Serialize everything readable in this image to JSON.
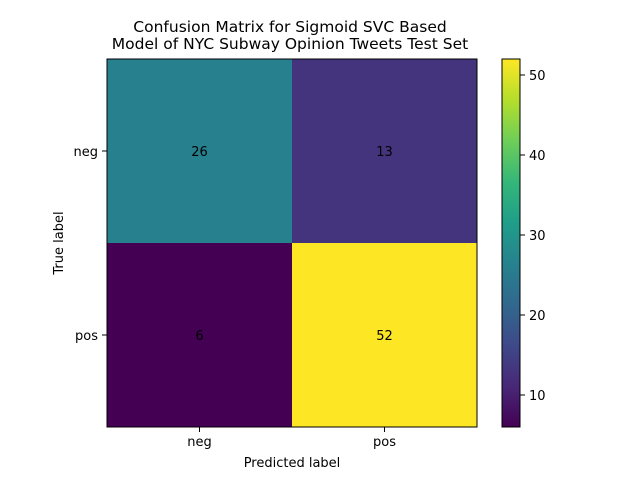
{
  "chart_data": {
    "type": "heatmap",
    "title_lines": [
      "Confusion Matrix for Sigmoid SVC Based",
      "Model of NYC Subway Opinion Tweets Test Set"
    ],
    "xlabel": "Predicted label",
    "ylabel": "True label",
    "x_categories": [
      "neg",
      "pos"
    ],
    "y_categories": [
      "neg",
      "pos"
    ],
    "values": [
      [
        26,
        13
      ],
      [
        6,
        52
      ]
    ],
    "colormap": "viridis",
    "colorbar": {
      "range": [
        6,
        52
      ],
      "ticks": [
        10,
        20,
        30,
        40,
        50
      ],
      "tick_labels": [
        "10",
        "20",
        "30",
        "40",
        "50"
      ]
    },
    "cell_text_colors": {
      "on_dark": "#fde725",
      "on_light": "#440154"
    },
    "grid": false,
    "legend": "none"
  }
}
